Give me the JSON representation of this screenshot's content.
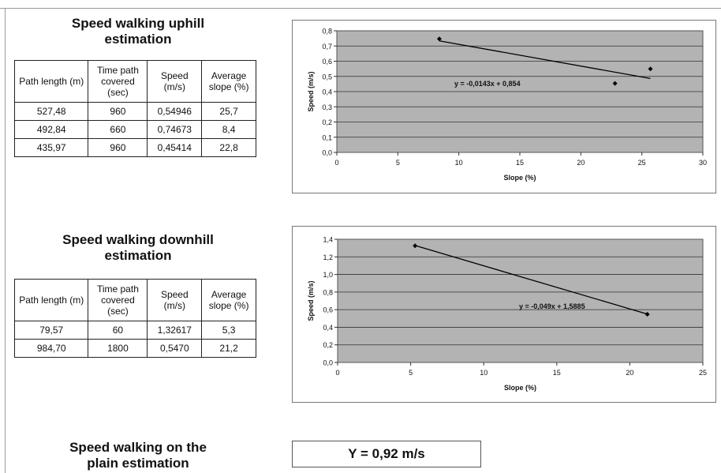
{
  "uphill": {
    "title_line1": "Speed walking uphill",
    "title_line2": "estimation",
    "headers": [
      "Path length (m)",
      "Time path covered (sec)",
      "Speed (m/s)",
      "Average slope (%)"
    ],
    "rows": [
      [
        "527,48",
        "960",
        "0,54946",
        "25,7"
      ],
      [
        "492,84",
        "660",
        "0,74673",
        "8,4"
      ],
      [
        "435,97",
        "960",
        "0,45414",
        "22,8"
      ]
    ]
  },
  "downhill": {
    "title_line1": "Speed walking downhill",
    "title_line2": "estimation",
    "headers": [
      "Path length (m)",
      "Time path covered (sec)",
      "Speed (m/s)",
      "Average slope (%)"
    ],
    "rows": [
      [
        "79,57",
        "60",
        "1,32617",
        "5,3"
      ],
      [
        "984,70",
        "1800",
        "0,5470",
        "21,2"
      ]
    ]
  },
  "plain": {
    "title_line1": "Speed walking on the",
    "title_line2": "plain estimation",
    "result": "Y = 0,92 m/s"
  },
  "chart_data": [
    {
      "type": "scatter",
      "xlabel": "Slope (%)",
      "ylabel": "Speed (m/s)",
      "xlim": [
        0,
        30
      ],
      "ylim": [
        0,
        0.8
      ],
      "x_ticks": [
        0,
        5,
        10,
        15,
        20,
        25,
        30
      ],
      "y_ticks": [
        0,
        0.1,
        0.2,
        0.3,
        0.4,
        0.5,
        0.6,
        0.7,
        0.8
      ],
      "x_tick_labels": [
        "0",
        "5",
        "10",
        "15",
        "20",
        "25",
        "30"
      ],
      "y_tick_labels": [
        "0,0",
        "0,1",
        "0,2",
        "0,3",
        "0,4",
        "0,5",
        "0,6",
        "0,7",
        "0,8"
      ],
      "points": [
        [
          25.7,
          0.54946
        ],
        [
          8.4,
          0.74673
        ],
        [
          22.8,
          0.45414
        ]
      ],
      "trendline": {
        "slope": -0.0143,
        "intercept": 0.854,
        "x_range": [
          8.4,
          25.7
        ]
      },
      "equation": "y = -0,0143x + 0,854",
      "grid": true,
      "plot_bg": "#b3b3b3"
    },
    {
      "type": "scatter",
      "xlabel": "Slope (%)",
      "ylabel": "Speed (m/s)",
      "xlim": [
        0,
        25
      ],
      "ylim": [
        0,
        1.4
      ],
      "x_ticks": [
        0,
        5,
        10,
        15,
        20,
        25
      ],
      "y_ticks": [
        0,
        0.2,
        0.4,
        0.6,
        0.8,
        1.0,
        1.2,
        1.4
      ],
      "x_tick_labels": [
        "0",
        "5",
        "10",
        "15",
        "20",
        "25"
      ],
      "y_tick_labels": [
        "0,0",
        "0,2",
        "0,4",
        "0,6",
        "0,8",
        "1,0",
        "1,2",
        "1,4"
      ],
      "points": [
        [
          5.3,
          1.32617
        ],
        [
          21.2,
          0.547
        ]
      ],
      "trendline": {
        "slope": -0.049,
        "intercept": 1.5885,
        "x_range": [
          5.3,
          21.2
        ]
      },
      "equation": "y = -0,049x + 1,5885",
      "grid": true,
      "plot_bg": "#b3b3b3"
    }
  ]
}
